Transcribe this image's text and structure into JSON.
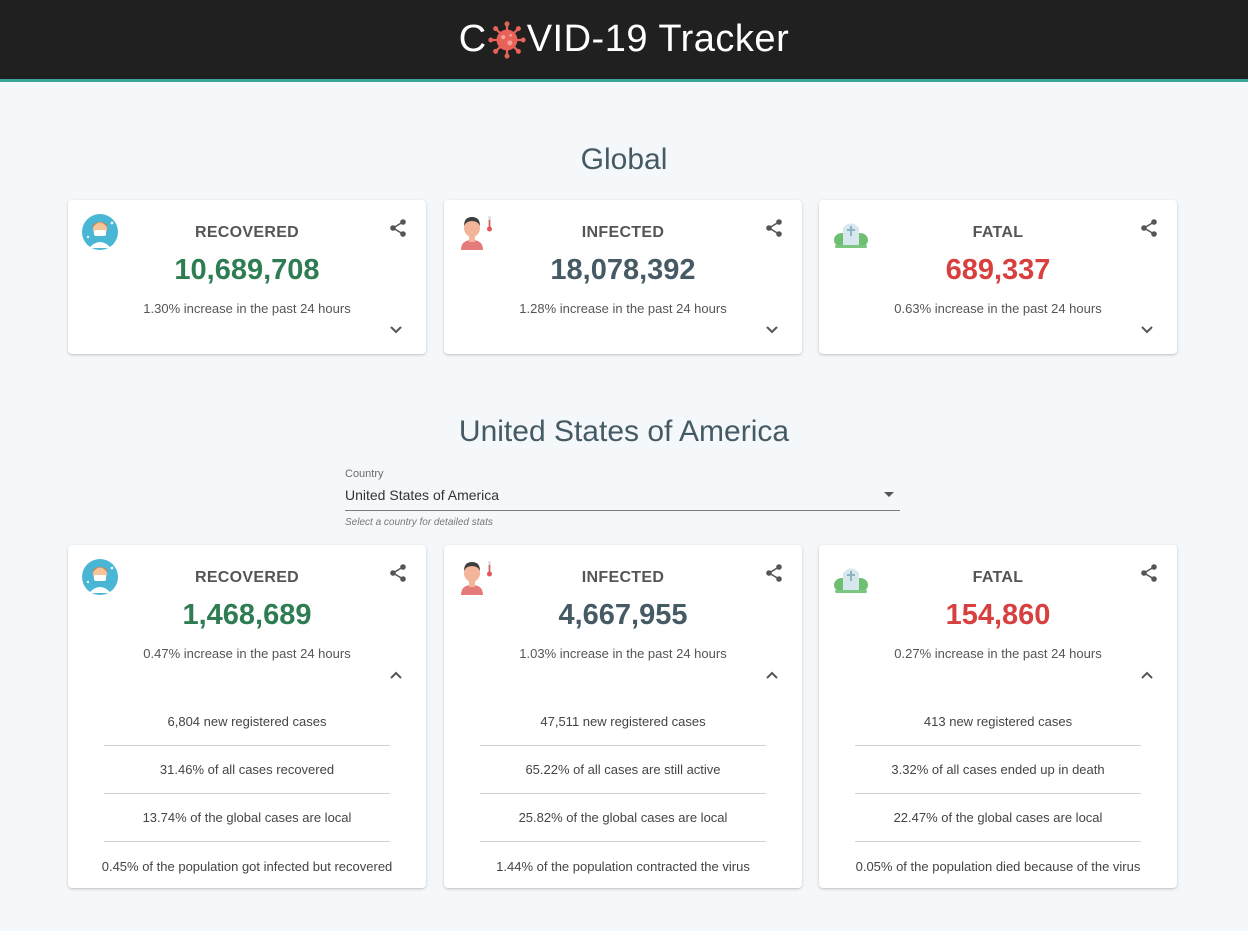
{
  "app": {
    "title_before": "C",
    "title_after": "VID-19 Tracker"
  },
  "global": {
    "heading": "Global",
    "cards": [
      {
        "label": "RECOVERED",
        "value": "10,689,708",
        "increase": "1.30% increase in the past 24 hours",
        "color": "#2e7d52"
      },
      {
        "label": "INFECTED",
        "value": "18,078,392",
        "increase": "1.28% increase in the past 24 hours",
        "color": "#455a64"
      },
      {
        "label": "FATAL",
        "value": "689,337",
        "increase": "0.63% increase in the past 24 hours",
        "color": "#d84040"
      }
    ]
  },
  "country": {
    "heading": "United States of America",
    "select": {
      "label": "Country",
      "value": "United States of America",
      "helper": "Select a country for detailed stats"
    },
    "cards": [
      {
        "label": "RECOVERED",
        "value": "1,468,689",
        "increase": "0.47% increase in the past 24 hours",
        "color": "#2e7d52",
        "details": [
          "6,804 new registered cases",
          "31.46% of all cases recovered",
          "13.74% of the global cases are local",
          "0.45% of the population got infected but recovered"
        ]
      },
      {
        "label": "INFECTED",
        "value": "4,667,955",
        "increase": "1.03% increase in the past 24 hours",
        "color": "#455a64",
        "details": [
          "47,511 new registered cases",
          "65.22% of all cases are still active",
          "25.82% of the global cases are local",
          "1.44% of the population contracted the virus"
        ]
      },
      {
        "label": "FATAL",
        "value": "154,860",
        "increase": "0.27% increase in the past 24 hours",
        "color": "#d84040",
        "details": [
          "413 new registered cases",
          "3.32% of all cases ended up in death",
          "22.47% of the global cases are local",
          "0.05% of the population died because of the virus"
        ]
      }
    ]
  },
  "icons": {
    "recovered": "doctor-icon",
    "infected": "patient-thermometer-icon",
    "fatal": "grave-icon",
    "share": "share-icon",
    "expand": "chevron-down-icon",
    "collapse": "chevron-up-icon",
    "logo": "virus-icon"
  }
}
